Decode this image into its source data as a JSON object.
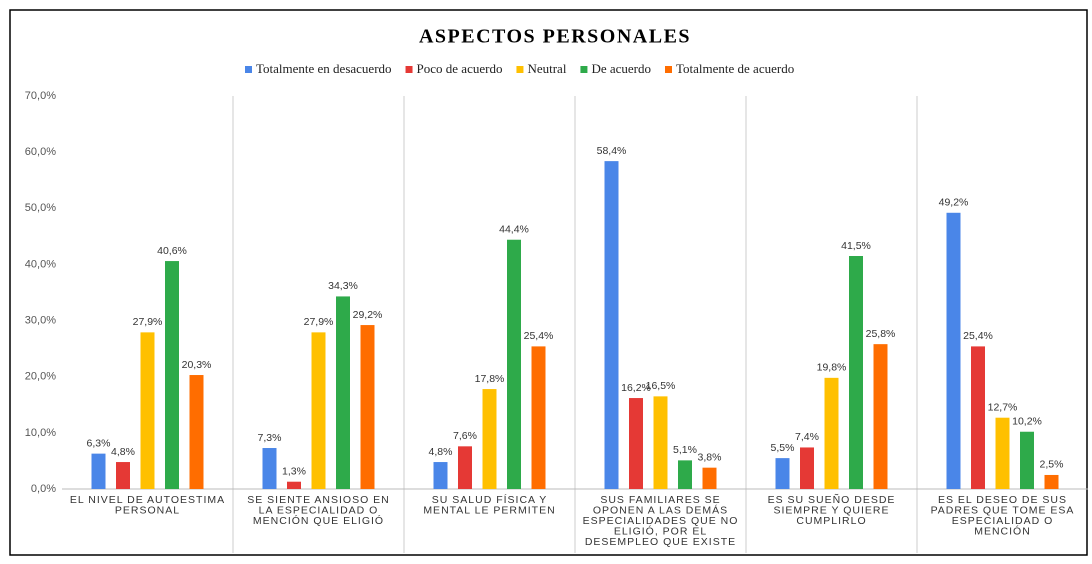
{
  "chart_data": {
    "type": "bar",
    "title": "ASPECTOS PERSONALES",
    "categories": [
      [
        "EL NIVEL DE AUTOESTIMA",
        "PERSONAL"
      ],
      [
        "SE SIENTE ANSIOSO EN",
        "LA ESPECIALIDAD O",
        "MENCIÓN QUE ELIGIÓ"
      ],
      [
        "SU SALUD FÍSICA Y",
        "MENTAL LE PERMITEN"
      ],
      [
        "SUS FAMILIARES SE",
        "OPONEN A LAS DEMÁS",
        "ESPECIALIDADES QUE NO",
        "ELIGIÓ, POR EL",
        "DESEMPLEO QUE EXISTE"
      ],
      [
        "ES SU SUEÑO DESDE",
        "SIEMPRE Y QUIERE",
        "CUMPLIRLO"
      ],
      [
        "ES EL DESEO DE SUS",
        "PADRES QUE TOME ESA",
        "ESPECIALIDAD O",
        "MENCIÓN"
      ]
    ],
    "series": [
      {
        "name": "Totalmente en desacuerdo",
        "color": "#4a86e8",
        "values": [
          6.3,
          7.3,
          4.8,
          58.4,
          5.5,
          49.2
        ],
        "value_labels": [
          "6,3%",
          "7,3%",
          "4,8%",
          "58,4%",
          "5,5%",
          "49,2%"
        ]
      },
      {
        "name": "Poco de acuerdo",
        "color": "#e53935",
        "values": [
          4.8,
          1.3,
          7.6,
          16.2,
          7.4,
          25.4
        ],
        "value_labels": [
          "4,8%",
          "1,3%",
          "7,6%",
          "16,2%",
          "7,4%",
          "25,4%"
        ]
      },
      {
        "name": "Neutral",
        "color": "#ffc000",
        "values": [
          27.9,
          27.9,
          17.8,
          16.5,
          19.8,
          12.7
        ],
        "value_labels": [
          "27,9%",
          "27,9%",
          "17,8%",
          "16,5%",
          "19,8%",
          "12,7%"
        ]
      },
      {
        "name": "De acuerdo",
        "color": "#2eaa4a",
        "values": [
          40.6,
          34.3,
          44.4,
          5.1,
          41.5,
          10.2
        ],
        "value_labels": [
          "40,6%",
          "34,3%",
          "44,4%",
          "5,1%",
          "41,5%",
          "10,2%"
        ]
      },
      {
        "name": "Totalmente de acuerdo",
        "color": "#ff6d00",
        "values": [
          20.3,
          29.2,
          25.4,
          3.8,
          25.8,
          2.5
        ],
        "value_labels": [
          "20,3%",
          "29,2%",
          "25,4%",
          "3,8%",
          "25,8%",
          "2,5%"
        ]
      }
    ],
    "ylim": [
      0,
      70
    ],
    "yticks": [
      {
        "value": 0,
        "label": "0,0%"
      },
      {
        "value": 10,
        "label": "10,0%"
      },
      {
        "value": 20,
        "label": "20,0%"
      },
      {
        "value": 30,
        "label": "30,0%"
      },
      {
        "value": 40,
        "label": "40,0%"
      },
      {
        "value": 50,
        "label": "50,0%"
      },
      {
        "value": 60,
        "label": "60,0%"
      },
      {
        "value": 70,
        "label": "70,0%"
      }
    ],
    "grid": false,
    "legend": "top"
  }
}
